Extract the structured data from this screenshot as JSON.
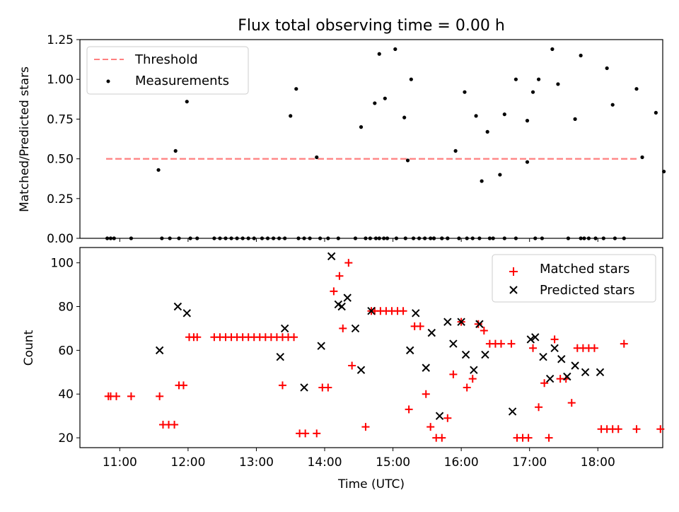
{
  "title": "Flux total observing time = 0.00 h",
  "colors": {
    "threshold": "#ff7f7f",
    "measurements": "#000000",
    "matched": "#ff0000",
    "predicted": "#000000"
  },
  "chart_data": [
    {
      "type": "scatter",
      "title": "Flux total observing time = 0.00 h",
      "xlabel": "",
      "ylabel": "Matched/Predicted stars",
      "xlim": [
        "10:25",
        "18:57"
      ],
      "ylim": [
        0,
        1.25
      ],
      "yticks": [
        "0.00",
        "0.25",
        "0.50",
        "0.75",
        "1.00",
        "1.25"
      ],
      "legend": {
        "position": "top-left",
        "entries": [
          "Threshold",
          "Measurements"
        ]
      },
      "threshold": {
        "name": "Threshold",
        "x": [
          "10:48",
          "18:35"
        ],
        "y": 0.5
      },
      "series": [
        {
          "name": "Measurements",
          "x": [
            "10:49",
            "10:52",
            "10:55",
            "11:10",
            "11:34",
            "11:37",
            "11:44",
            "11:49",
            "11:52",
            "11:59",
            "12:02",
            "12:08",
            "12:23",
            "12:28",
            "12:33",
            "12:38",
            "12:43",
            "12:48",
            "12:53",
            "12:58",
            "13:05",
            "13:10",
            "13:15",
            "13:20",
            "13:25",
            "13:30",
            "13:35",
            "13:37",
            "13:42",
            "13:47",
            "13:53",
            "13:56",
            "14:03",
            "14:12",
            "14:27",
            "14:32",
            "14:36",
            "14:44",
            "14:48",
            "14:53",
            "15:02",
            "15:10",
            "15:13",
            "15:16",
            "15:23",
            "15:33",
            "15:36",
            "15:43",
            "15:48",
            "15:55",
            "16:03",
            "16:13",
            "16:18",
            "16:23",
            "16:28",
            "16:34",
            "16:38",
            "16:48",
            "16:58",
            "17:03",
            "17:08",
            "17:20",
            "17:25",
            "17:34",
            "17:45",
            "17:48",
            "17:58",
            "18:05",
            "18:15",
            "18:34",
            "18:39",
            "18:51",
            "18:58",
            "18:08",
            "18:13",
            "18:23",
            "17:40",
            "17:45",
            "17:52",
            "17:11",
            "17:05",
            "16:58",
            "16:48",
            "16:38",
            "16:25",
            "16:16",
            "16:10",
            "16:05",
            "15:58",
            "15:48",
            "15:43",
            "15:36",
            "15:28",
            "15:18",
            "15:11",
            "15:03",
            "14:55",
            "14:52",
            "14:48",
            "14:45",
            "14:40"
          ],
          "y": [
            0,
            0,
            0,
            0,
            0.43,
            0,
            0,
            0.55,
            0,
            0.86,
            0,
            0,
            0,
            0,
            0,
            0,
            0,
            0,
            0,
            0,
            0,
            0,
            0,
            0,
            0,
            0.77,
            0.94,
            0,
            0,
            0,
            0.51,
            0,
            0,
            0,
            0,
            0.7,
            0,
            0.85,
            1.16,
            0.88,
            1.19,
            0.76,
            0.49,
            1.0,
            0,
            0,
            0,
            0,
            0,
            0.55,
            0.92,
            0.77,
            0.36,
            0.67,
            0,
            0.4,
            0.78,
            1.0,
            0.74,
            0.92,
            1.0,
            1.19,
            0.97,
            0,
            0,
            0,
            0,
            0,
            0,
            0.94,
            0.51,
            0.79,
            0.42,
            1.07,
            0.84,
            0,
            0.75,
            1.15,
            0,
            0,
            0,
            0.48,
            0,
            0,
            0,
            0,
            0,
            0,
            0,
            0,
            0,
            0,
            0,
            0,
            0,
            0,
            0,
            0,
            0,
            0,
            0
          ]
        }
      ]
    },
    {
      "type": "scatter",
      "xlabel": "Time (UTC)",
      "ylabel": "Count",
      "xlim": [
        "10:25",
        "18:57"
      ],
      "ylim": [
        15.5,
        107
      ],
      "xticks": [
        "11:00",
        "12:00",
        "13:00",
        "14:00",
        "15:00",
        "16:00",
        "17:00",
        "18:00"
      ],
      "yticks": [
        "20",
        "40",
        "60",
        "80",
        "100"
      ],
      "legend": {
        "position": "top-right",
        "entries": [
          "Matched stars",
          "Predicted stars"
        ]
      },
      "series": [
        {
          "name": "Matched stars",
          "x": [
            "10:50",
            "10:52",
            "10:57",
            "11:10",
            "11:35",
            "11:38",
            "11:43",
            "11:48",
            "11:52",
            "11:56",
            "12:01",
            "12:05",
            "12:08",
            "12:23",
            "12:28",
            "12:33",
            "12:38",
            "12:43",
            "12:48",
            "12:53",
            "12:58",
            "13:03",
            "13:08",
            "13:13",
            "13:18",
            "13:23",
            "13:23",
            "13:28",
            "13:33",
            "13:38",
            "13:43",
            "13:53",
            "13:58",
            "14:03",
            "14:08",
            "14:13",
            "14:16",
            "14:21",
            "14:24",
            "14:36",
            "14:41",
            "14:44",
            "14:49",
            "14:54",
            "14:59",
            "15:04",
            "15:09",
            "15:14",
            "15:19",
            "15:24",
            "15:29",
            "15:33",
            "15:38",
            "15:43",
            "15:48",
            "15:53",
            "16:00",
            "16:05",
            "16:10",
            "16:15",
            "16:20",
            "16:25",
            "16:30",
            "16:44",
            "16:49",
            "16:54",
            "16:59",
            "17:03",
            "17:08",
            "17:13",
            "17:17",
            "17:22",
            "17:27",
            "17:32",
            "17:37",
            "17:42",
            "17:47",
            "17:52",
            "17:57",
            "18:03",
            "18:08",
            "18:13",
            "18:18",
            "18:23",
            "18:34",
            "18:55",
            "16:35"
          ],
          "y": [
            39,
            39,
            39,
            39,
            39,
            26,
            26,
            26,
            44,
            44,
            66,
            66,
            66,
            66,
            66,
            66,
            66,
            66,
            66,
            66,
            66,
            66,
            66,
            66,
            66,
            44,
            66,
            66,
            66,
            22,
            22,
            22,
            43,
            43,
            87,
            94,
            70,
            100,
            53,
            25,
            78,
            78,
            78,
            78,
            78,
            78,
            78,
            33,
            71,
            71,
            40,
            25,
            20,
            20,
            29,
            49,
            73,
            43,
            47,
            72,
            69,
            63,
            63,
            63,
            20,
            20,
            20,
            61,
            34,
            45,
            20,
            65,
            47,
            47,
            36,
            61,
            61,
            61,
            61,
            24,
            24,
            24,
            24,
            63,
            24,
            24,
            63
          ]
        },
        {
          "name": "Predicted stars",
          "x": [
            "11:35",
            "11:51",
            "11:59",
            "13:21",
            "13:25",
            "13:42",
            "13:57",
            "14:06",
            "14:12",
            "14:15",
            "14:20",
            "14:27",
            "14:32",
            "14:41",
            "15:15",
            "15:20",
            "15:29",
            "15:34",
            "15:41",
            "15:48",
            "15:53",
            "16:00",
            "16:04",
            "16:11",
            "16:16",
            "16:21",
            "16:45",
            "17:01",
            "17:05",
            "17:12",
            "17:18",
            "17:22",
            "17:28",
            "17:33",
            "17:40",
            "17:49",
            "18:02"
          ],
          "y": [
            60,
            80,
            77,
            57,
            70,
            43,
            62,
            103,
            81,
            80,
            84,
            70,
            51,
            78,
            60,
            77,
            52,
            68,
            30,
            73,
            63,
            73,
            58,
            51,
            72,
            58,
            32,
            65,
            66,
            57,
            47,
            61,
            56,
            48,
            53,
            50,
            50
          ]
        }
      ]
    }
  ]
}
